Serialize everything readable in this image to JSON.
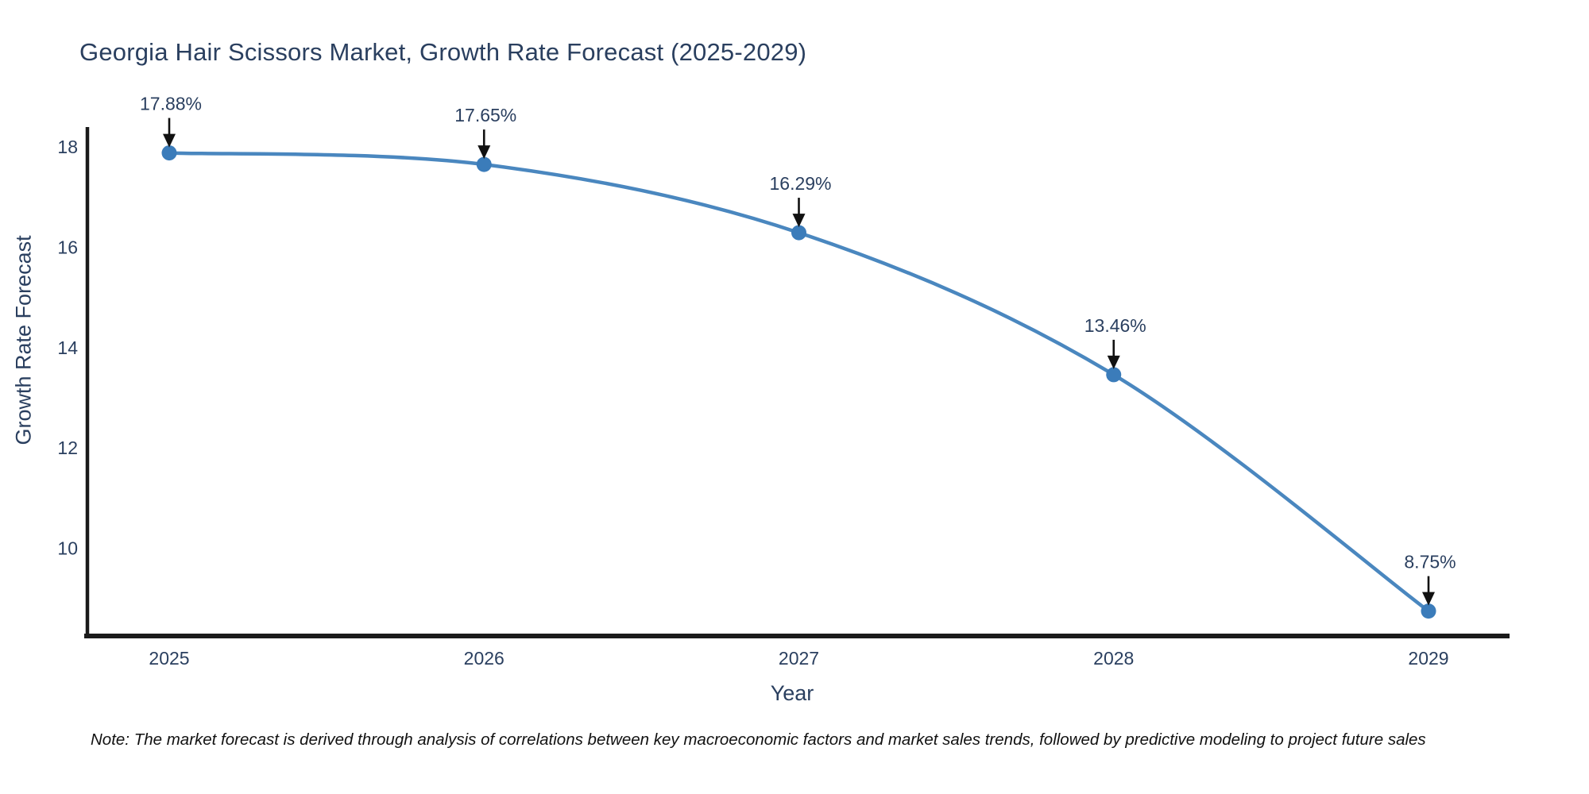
{
  "chart_data": {
    "type": "line",
    "title": "Georgia Hair Scissors Market, Growth Rate Forecast (2025-2029)",
    "xlabel": "Year",
    "ylabel": "Growth Rate Forecast",
    "categories": [
      "2025",
      "2026",
      "2027",
      "2028",
      "2029"
    ],
    "series": [
      {
        "name": "Growth Rate Forecast",
        "values": [
          17.88,
          17.65,
          16.29,
          13.46,
          8.75
        ],
        "point_labels": [
          "17.88%",
          "17.65%",
          "16.29%",
          "13.46%",
          "8.75%"
        ]
      }
    ],
    "yticks": [
      10,
      12,
      14,
      16,
      18
    ],
    "ylim": [
      8.2,
      18.4
    ],
    "line_shape": "spline",
    "grid": false,
    "legend_position": "none",
    "annotations_style": "value label above point with downward arrow",
    "colors": {
      "line": "#4a87bf",
      "marker": "#3b7cba",
      "axis_line": "#1a1a1a",
      "tick_text": "#2a3f5f",
      "annotation_text": "#2a3f5f",
      "annotation_arrow": "#111111",
      "title_text": "#2a3f5f",
      "background": "#ffffff"
    }
  },
  "note": {
    "text": "Note: The market forecast is derived through analysis of correlations between key macroeconomic factors and market sales trends, followed by predictive modeling to project future sales"
  }
}
